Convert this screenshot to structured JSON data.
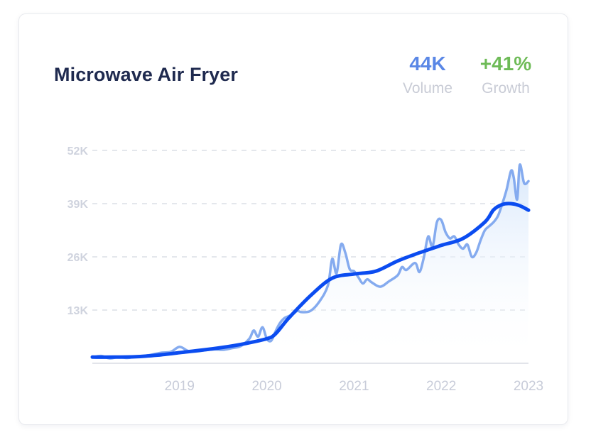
{
  "card": {
    "title": "Microwave Air Fryer",
    "volume": {
      "value": "44K",
      "label": "Volume"
    },
    "growth": {
      "value": "+41%",
      "label": "Growth"
    }
  },
  "colors": {
    "raw_line": "#7ea6ee",
    "trend_line": "#0b4cf0",
    "area_top": "#d7e7fb",
    "grid": "#dcdfe6",
    "volume": "#5a87e6",
    "growth": "#6ebb57"
  },
  "chart_data": {
    "type": "line",
    "title": "",
    "xlabel": "",
    "ylabel": "",
    "ylim": [
      0,
      52000
    ],
    "xlim": [
      2018.0,
      2023.0
    ],
    "y_ticks": [
      {
        "value": 13000,
        "label": "13K"
      },
      {
        "value": 26000,
        "label": "26K"
      },
      {
        "value": 39000,
        "label": "39K"
      },
      {
        "value": 52000,
        "label": "52K"
      }
    ],
    "x_ticks": [
      {
        "value": 2019,
        "label": "2019"
      },
      {
        "value": 2020,
        "label": "2020"
      },
      {
        "value": 2021,
        "label": "2021"
      },
      {
        "value": 2022,
        "label": "2022"
      },
      {
        "value": 2023,
        "label": "2023"
      }
    ],
    "grid": true,
    "series": [
      {
        "kind": "raw",
        "x": [
          2018.0,
          2018.1,
          2018.2,
          2018.3,
          2018.4,
          2018.5,
          2018.6,
          2018.7,
          2018.8,
          2018.9,
          2019.0,
          2019.1,
          2019.2,
          2019.3,
          2019.4,
          2019.5,
          2019.6,
          2019.7,
          2019.8,
          2019.85,
          2019.9,
          2019.95,
          2020.0,
          2020.05,
          2020.1,
          2020.15,
          2020.2,
          2020.25,
          2020.3,
          2020.35,
          2020.4,
          2020.5,
          2020.6,
          2020.7,
          2020.75,
          2020.8,
          2020.85,
          2020.9,
          2020.95,
          2021.0,
          2021.05,
          2021.1,
          2021.15,
          2021.2,
          2021.3,
          2021.4,
          2021.5,
          2021.55,
          2021.6,
          2021.7,
          2021.75,
          2021.8,
          2021.85,
          2021.9,
          2021.95,
          2022.0,
          2022.05,
          2022.1,
          2022.15,
          2022.2,
          2022.25,
          2022.3,
          2022.35,
          2022.4,
          2022.45,
          2022.5,
          2022.55,
          2022.6,
          2022.65,
          2022.7,
          2022.75,
          2022.8,
          2022.83,
          2022.87,
          2022.9,
          2022.95,
          2023.0
        ],
        "values": [
          1500,
          1800,
          1200,
          1500,
          1300,
          1600,
          1800,
          2200,
          2600,
          2800,
          4000,
          3000,
          2900,
          3200,
          3400,
          3300,
          3700,
          4200,
          6000,
          8000,
          6500,
          8800,
          6000,
          5500,
          7800,
          9800,
          11000,
          11500,
          12000,
          12800,
          12500,
          12800,
          15000,
          19000,
          25500,
          22000,
          29000,
          27000,
          23000,
          22500,
          21000,
          19500,
          20500,
          19800,
          18700,
          20000,
          21500,
          23500,
          22800,
          24500,
          22300,
          25800,
          31000,
          28500,
          34500,
          35000,
          32000,
          30500,
          31000,
          29000,
          28000,
          29000,
          26000,
          27000,
          30000,
          32500,
          33500,
          34500,
          36000,
          39000,
          42500,
          47000,
          45500,
          40000,
          48500,
          44000,
          44500
        ]
      },
      {
        "kind": "trend",
        "x": [
          2018.0,
          2018.25,
          2018.5,
          2018.75,
          2019.0,
          2019.25,
          2019.5,
          2019.75,
          2020.0,
          2020.1,
          2020.25,
          2020.5,
          2020.75,
          2021.0,
          2021.25,
          2021.5,
          2021.75,
          2022.0,
          2022.25,
          2022.5,
          2022.6,
          2022.7,
          2022.8,
          2022.9,
          2023.0
        ],
        "values": [
          1500,
          1500,
          1600,
          2000,
          2600,
          3200,
          3900,
          4800,
          6000,
          7200,
          11000,
          16500,
          20800,
          21800,
          22500,
          25000,
          27000,
          28800,
          30500,
          34500,
          37500,
          38800,
          39000,
          38500,
          37400
        ]
      }
    ]
  }
}
